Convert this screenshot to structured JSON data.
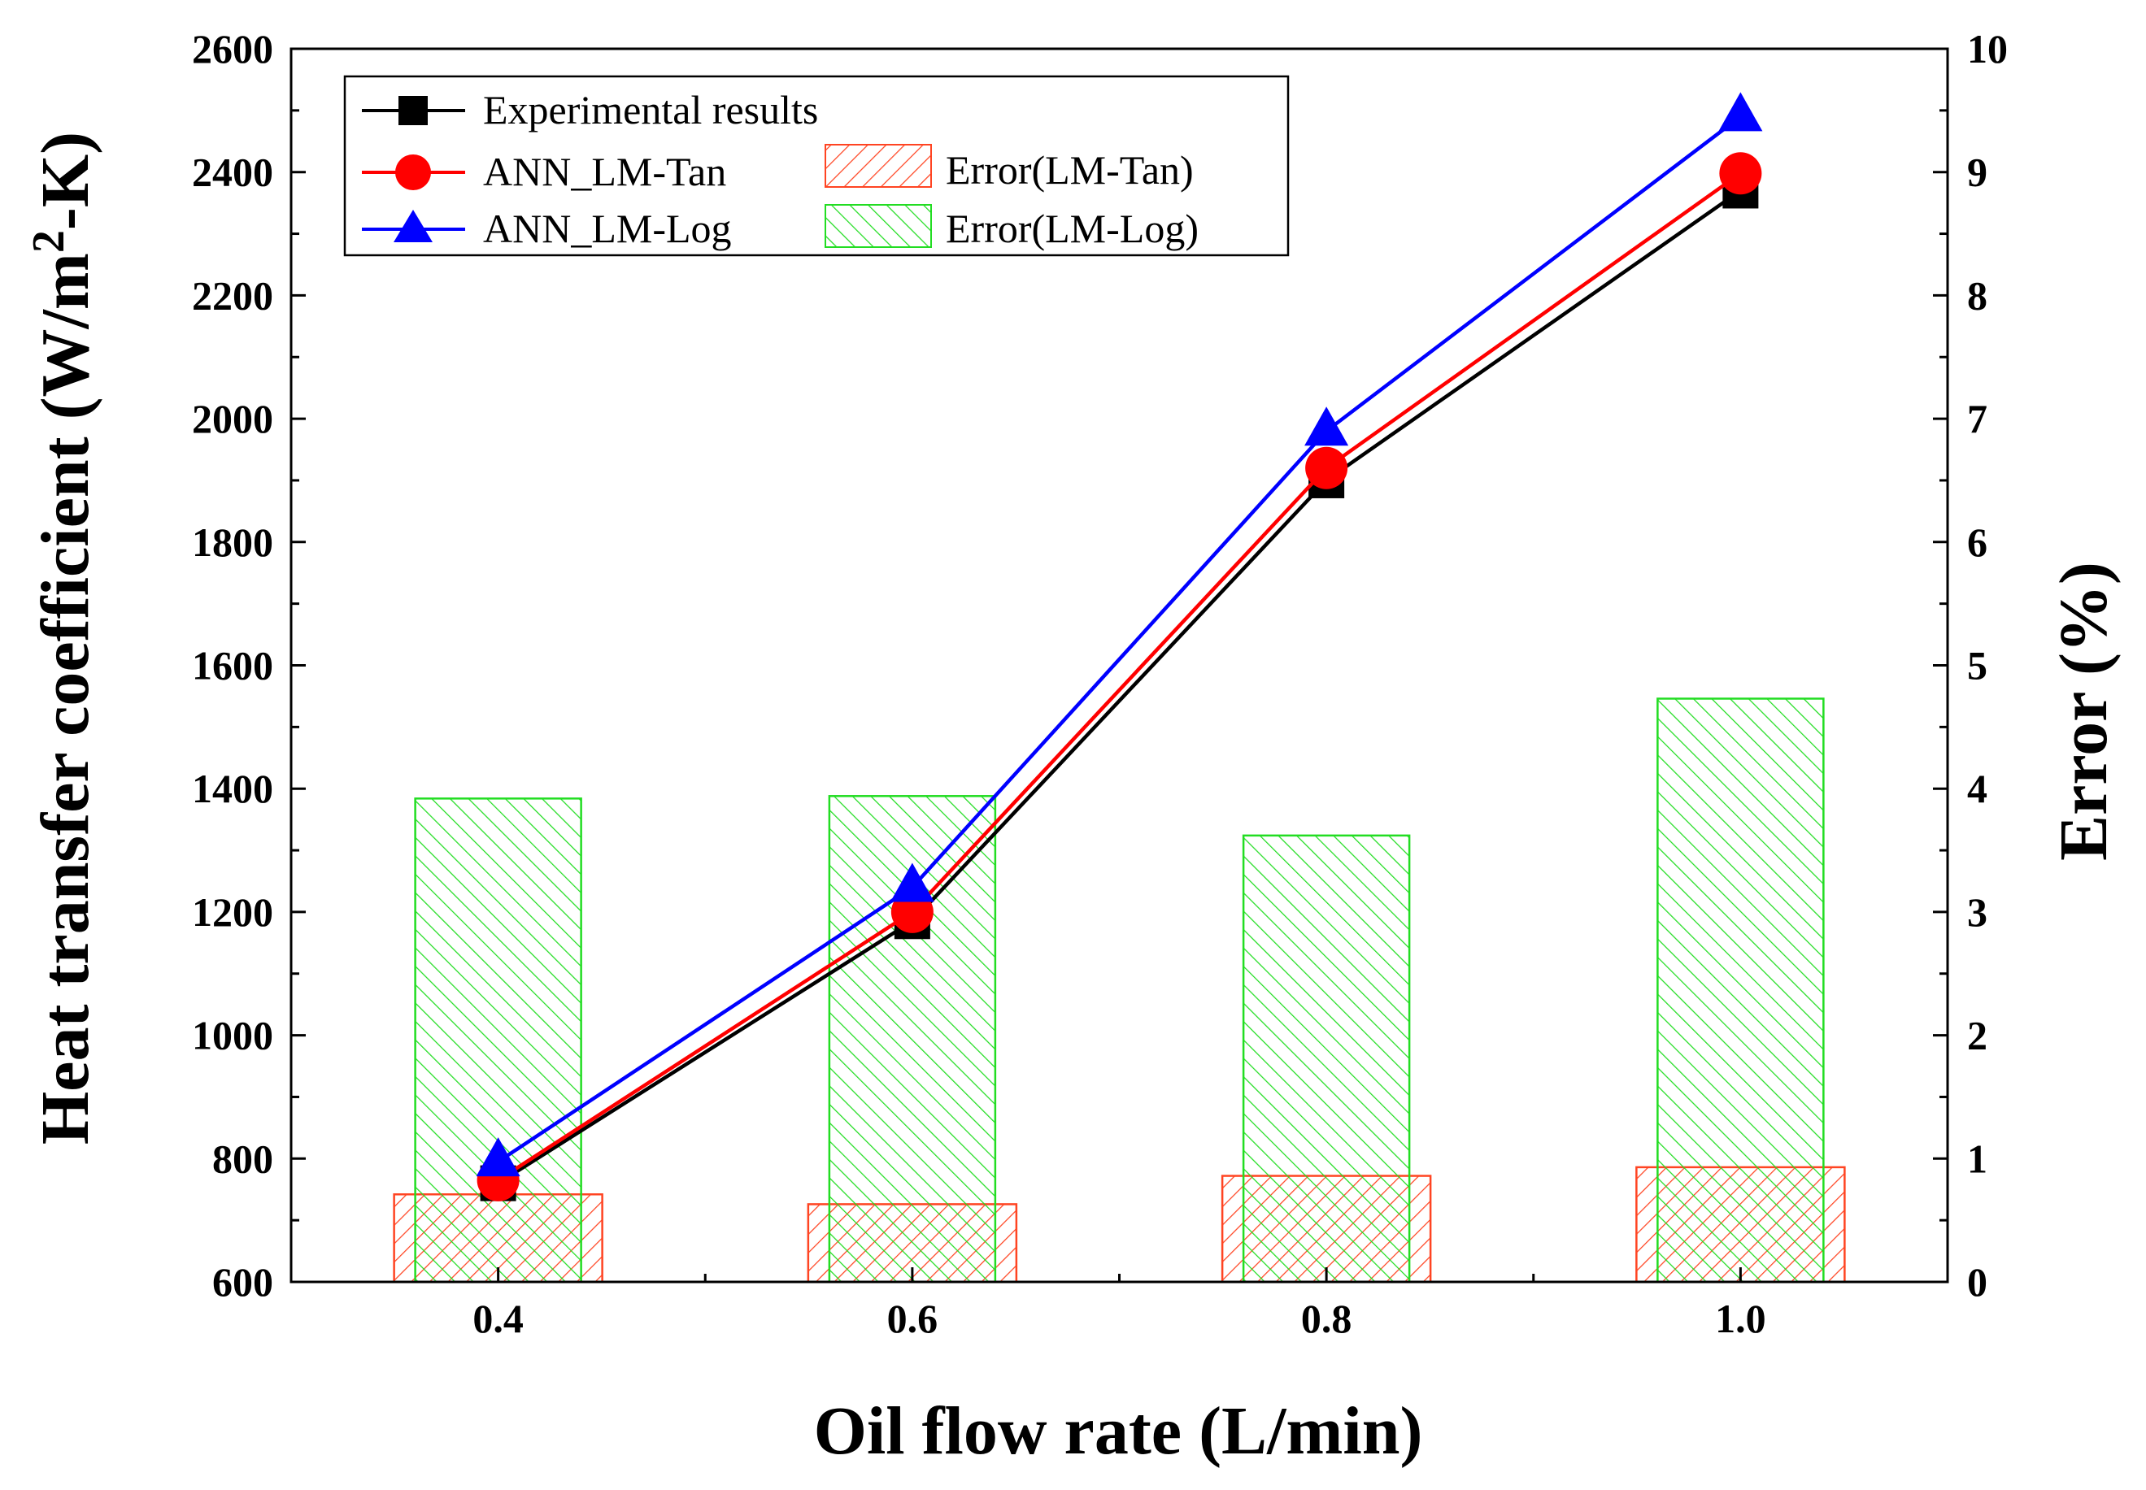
{
  "chart_data": {
    "type": "line+bar",
    "x_categories": [
      "0.4",
      "0.6",
      "0.8",
      "1.0"
    ],
    "x": [
      0.4,
      0.6,
      0.8,
      1.0
    ],
    "xlabel": "Oil flow rate (L/min)",
    "xlim": [
      0.3,
      1.1
    ],
    "ylabel_left": {
      "pre": "Heat transfer coefficient (W/m",
      "sup": "2",
      "post": "-K)"
    },
    "ylim_left": [
      600,
      2600
    ],
    "yticks_left": [
      "600",
      "800",
      "1000",
      "1200",
      "1400",
      "1600",
      "1800",
      "2000",
      "2200",
      "2400",
      "2600"
    ],
    "ylabel_right": "Error (%)",
    "ylim_right": [
      0,
      10
    ],
    "yticks_right": [
      "0",
      "1",
      "2",
      "3",
      "4",
      "5",
      "6",
      "7",
      "8",
      "9",
      "10"
    ],
    "line_series": [
      {
        "name": "Experimental results",
        "color": "#000000",
        "marker": "square",
        "values": [
          760,
          1185,
          1900,
          2370
        ]
      },
      {
        "name": "ANN_LM-Tan",
        "color": "#ff0000",
        "marker": "circle",
        "values": [
          765,
          1200,
          1920,
          2398
        ]
      },
      {
        "name": "ANN_LM-Log",
        "color": "#0000ff",
        "marker": "triangle",
        "values": [
          795,
          1240,
          1980,
          2490
        ]
      }
    ],
    "bar_series": [
      {
        "name": "Error(LM-Tan)",
        "color": "#ff4422",
        "values": [
          0.71,
          0.63,
          0.86,
          0.93
        ]
      },
      {
        "name": "Error(LM-Log)",
        "color": "#22dd22",
        "values": [
          3.92,
          3.94,
          3.62,
          4.73
        ]
      }
    ],
    "legend_position": "top-left"
  }
}
